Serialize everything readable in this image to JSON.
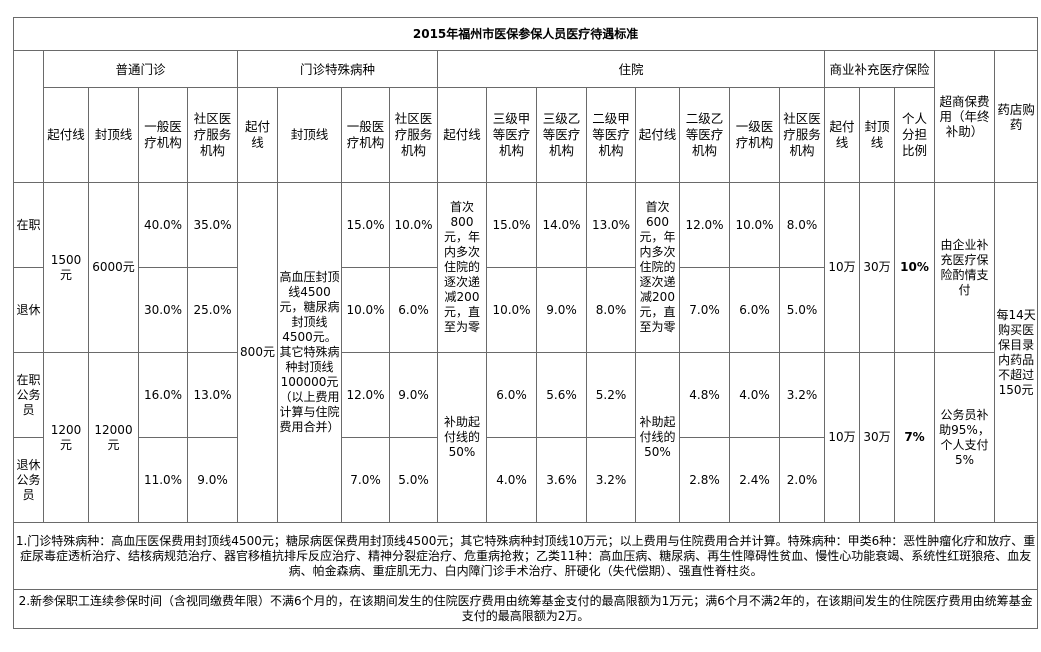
{
  "title": "2015年福州市医保参保人员医疗待遇标准",
  "groups": {
    "outpatient": "普通门诊",
    "special": "门诊特殊病种",
    "inpatient": "住院",
    "commercial": "商业补充医疗保险",
    "super": "超商保费用（年终补助）",
    "pharmacy": "药店购药"
  },
  "subheaders": {
    "op_deductible": "起付线",
    "op_cap": "封顶线",
    "op_general": "一般医疗机构",
    "op_community": "社区医疗服务机构",
    "sp_deductible": "起付线",
    "sp_cap": "封顶线",
    "sp_general": "一般医疗机构",
    "sp_community": "社区医疗服务机构",
    "ip_deductible1": "起付线",
    "ip_3a": "三级甲等医疗机构",
    "ip_3b": "三级乙等医疗机构",
    "ip_2a": "二级甲等医疗机构",
    "ip_deductible2": "起付线",
    "ip_2b": "二级乙等医疗机构",
    "ip_general": "一级医疗机构",
    "ip_community": "社区医疗服务机构",
    "cm_deductible": "起付线",
    "cm_cap": "封顶线",
    "cm_ratio": "个人分担比例"
  },
  "rows": {
    "r1": {
      "label": "在职",
      "op_general": "40.0%",
      "op_community": "35.0%",
      "sp_general": "15.0%",
      "sp_community": "10.0%",
      "ip_3a": "15.0%",
      "ip_3b": "14.0%",
      "ip_2a": "13.0%",
      "ip_2b": "12.0%",
      "ip_general": "10.0%",
      "ip_community": "8.0%"
    },
    "r2": {
      "label": "退休",
      "op_general": "30.0%",
      "op_community": "25.0%",
      "sp_general": "10.0%",
      "sp_community": "6.0%",
      "ip_3a": "10.0%",
      "ip_3b": "9.0%",
      "ip_2a": "8.0%",
      "ip_2b": "7.0%",
      "ip_general": "6.0%",
      "ip_community": "5.0%"
    },
    "r3": {
      "label": "在职公务员",
      "op_general": "16.0%",
      "op_community": "13.0%",
      "sp_general": "12.0%",
      "sp_community": "9.0%",
      "ip_3a": "6.0%",
      "ip_3b": "5.6%",
      "ip_2a": "5.2%",
      "ip_2b": "4.8%",
      "ip_general": "4.0%",
      "ip_community": "3.2%"
    },
    "r4": {
      "label": "退休公务员",
      "op_general": "11.0%",
      "op_community": "9.0%",
      "sp_general": "7.0%",
      "sp_community": "5.0%",
      "ip_3a": "4.0%",
      "ip_3b": "3.6%",
      "ip_2a": "3.2%",
      "ip_2b": "2.8%",
      "ip_general": "2.4%",
      "ip_community": "2.0%"
    }
  },
  "merged": {
    "op_deductible_a": "1500元",
    "op_cap_a": "6000元",
    "op_deductible_b": "1200元",
    "op_cap_b": "12000元",
    "sp_deductible": "800元",
    "sp_cap": "高血压封顶线4500元，糖尿病封顶线4500元。其它特殊病种封顶线100000元（以上费用计算与住院费用合并）",
    "ip_deductible1_a": "首次800元，年内多次住院的逐次递减200元，直至为零",
    "ip_deductible2_a": "首次600元，年内多次住院的逐次递减200元，直至为零",
    "ip_deductible_b1": "补助起付线的50%",
    "ip_deductible_b2": "补助起付线的50%",
    "cm_deductible_a": "10万",
    "cm_cap_a": "30万",
    "cm_ratio_a": "10%",
    "cm_deductible_b": "10万",
    "cm_cap_b": "30万",
    "cm_ratio_b": "7%",
    "super_a": "由企业补充医疗保险酌情支付",
    "super_b": "公务员补助95%，个人支付5%",
    "pharmacy": "每14天购买医保目录内药品不超过150元"
  },
  "notes": {
    "n1": "1.门诊特殊病种：高血压医保费用封顶线4500元；糖尿病医保费用封顶线4500元；其它特殊病种封顶线10万元；以上费用与住院费用合并计算。特殊病种：甲类6种：恶性肿瘤化疗和放疗、重症尿毒症透析治疗、结核病规范治疗、器官移植抗排斥反应治疗、精神分裂症治疗、危重病抢救；乙类11种：高血压病、糖尿病、再生性障碍性贫血、慢性心功能衰竭、系统性红斑狼疮、血友病、帕金森病、重症肌无力、白内障门诊手术治疗、肝硬化（失代偿期）、强直性脊柱炎。",
    "n2": "2.新参保职工连续参保时间（含视同缴费年限）不满6个月的，在该期间发生的住院医疗费用由统筹基金支付的最高限额为1万元；满6个月不满2年的，在该期间发生的住院医疗费用由统筹基金支付的最高限额为2万。"
  }
}
